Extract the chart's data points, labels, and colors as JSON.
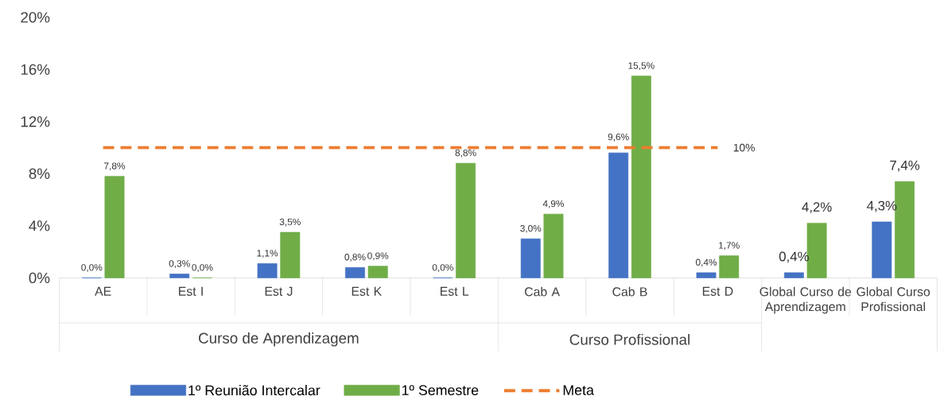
{
  "chart_data": {
    "type": "bar",
    "categories": [
      "AE",
      "Est I",
      "Est J",
      "Est K",
      "Est L",
      "Cab A",
      "Cab B",
      "Est D",
      "Global Curso de Aprendizagem",
      "Global Curso Profissional"
    ],
    "series": [
      {
        "name": "1º Reunião Intercalar",
        "color": "#4472c4",
        "values": [
          0,
          0.3,
          1.1,
          0.8,
          0,
          3.0,
          9.6,
          0.4,
          0.4,
          4.3
        ],
        "value_labels": [
          "0,0%",
          "0,3%",
          "1,1%",
          "0,8%",
          "0,0%",
          "3,0%",
          "9,6%",
          "0,4%",
          "0,4%",
          "4,3%"
        ]
      },
      {
        "name": "1º Semestre",
        "color": "#70ad47",
        "values": [
          7.8,
          0,
          3.5,
          0.9,
          8.8,
          4.9,
          15.5,
          1.7,
          4.2,
          7.4
        ],
        "value_labels": [
          "7,8%",
          "0,0%",
          "3,5%",
          "0,9%",
          "8,8%",
          "4,9%",
          "15,5%",
          "1,7%",
          "4,2%",
          "7,4%"
        ]
      },
      {
        "name": "Meta",
        "type": "line",
        "color": "#ed7d31",
        "line_style": "dashed",
        "marker": "none",
        "values": [
          10,
          10,
          10,
          10,
          10,
          10,
          10,
          10,
          null,
          null
        ],
        "value_labels": [
          null,
          null,
          null,
          null,
          null,
          null,
          null,
          "10%",
          null,
          null
        ]
      }
    ],
    "ylim": [
      0,
      20
    ],
    "yticks": [
      {
        "value": 0,
        "label": "0%"
      },
      {
        "value": 4,
        "label": "4%"
      },
      {
        "value": 8,
        "label": "8%"
      },
      {
        "value": 12,
        "label": "12%"
      },
      {
        "value": 16,
        "label": "16%"
      },
      {
        "value": 20,
        "label": "20%"
      }
    ],
    "annotations": [
      "Curso de Aprendizagem",
      "Curso Profissional"
    ],
    "grid": false,
    "legend": "bottom"
  }
}
